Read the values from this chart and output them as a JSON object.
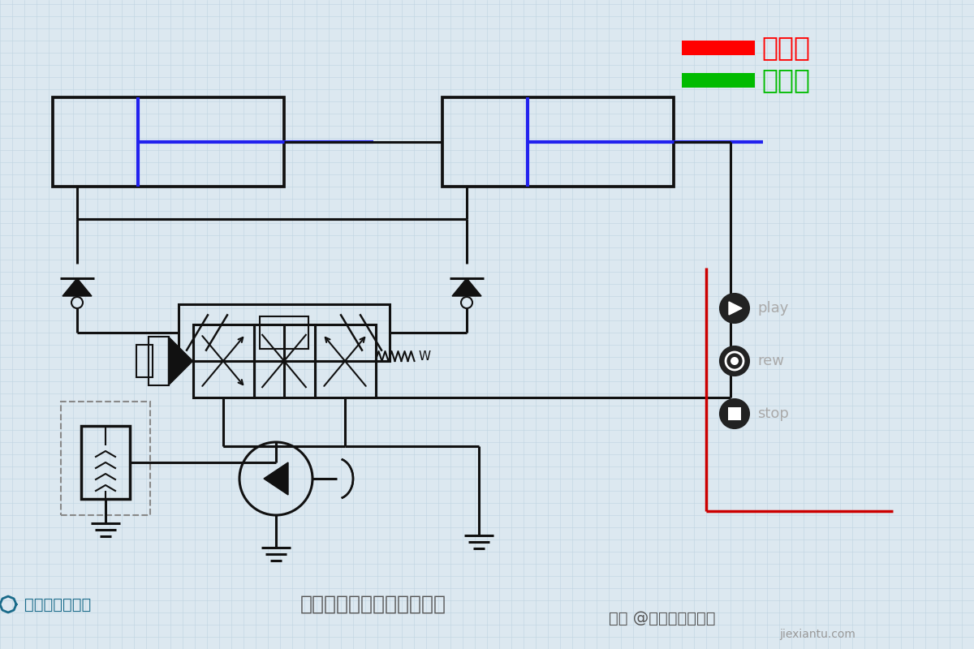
{
  "bg_color": "#dce8f0",
  "grid_color": "#bfd4e0",
  "title": "采用分流集流阀的同步回路",
  "legend_items": [
    {
      "label": "进油路",
      "color": "#ff0000"
    },
    {
      "label": "回油路",
      "color": "#00bb00"
    }
  ],
  "watermark_top": "头条 @机械工程师笔记",
  "watermark_bot": "机械工程师笔记",
  "play_labels": [
    "play",
    "rew",
    "stop"
  ],
  "line_color": "#111111",
  "blue_color": "#2222ee",
  "red_ui": "#cc0000",
  "gray_ui": "#aaaaaa"
}
